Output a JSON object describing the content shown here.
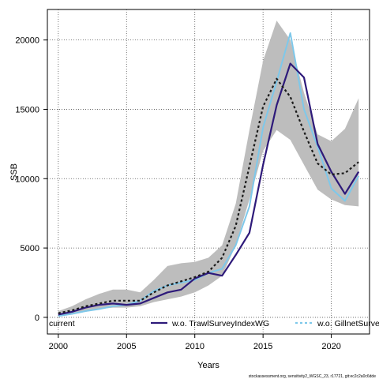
{
  "chart_data": {
    "type": "line",
    "xlabel": "Years",
    "ylabel": "SSB",
    "xlim": [
      1999.2,
      2022.8
    ],
    "ylim": [
      -1200,
      22200
    ],
    "x_ticks": [
      2000,
      2005,
      2010,
      2015,
      2020
    ],
    "y_ticks": [
      0,
      5000,
      10000,
      15000,
      20000
    ],
    "grid": true,
    "legend_position": "bottom",
    "x": [
      2000,
      2001,
      2002,
      2003,
      2004,
      2005,
      2006,
      2007,
      2008,
      2009,
      2010,
      2011,
      2012,
      2013,
      2014,
      2015,
      2016,
      2017,
      2018,
      2019,
      2020,
      2021,
      2022
    ],
    "band": {
      "lower": [
        100,
        200,
        400,
        600,
        700,
        700,
        800,
        1100,
        1300,
        1500,
        1800,
        2300,
        3000,
        5200,
        8500,
        12000,
        13500,
        12800,
        11000,
        9200,
        8500,
        8100,
        8000
      ],
      "upper": [
        450,
        800,
        1300,
        1700,
        2000,
        2000,
        1800,
        2700,
        3700,
        3900,
        4000,
        4300,
        5200,
        8200,
        13500,
        18500,
        21400,
        20000,
        16200,
        13200,
        12700,
        13600,
        15800
      ]
    },
    "series": [
      {
        "name": "current",
        "style": "dashed",
        "color": "#1a1a1a",
        "values": [
          300,
          500,
          800,
          1000,
          1200,
          1200,
          1200,
          1800,
          2300,
          2600,
          2900,
          3300,
          4300,
          6600,
          10900,
          15200,
          17200,
          15900,
          13400,
          11100,
          10300,
          10400,
          11200
        ]
      },
      {
        "name": "w.o. TrawlSurveyIndexWG",
        "style": "solid",
        "color": "#2e1a7a",
        "values": [
          200,
          400,
          700,
          900,
          1000,
          900,
          1000,
          1400,
          1800,
          2000,
          2800,
          3200,
          3000,
          4500,
          6100,
          11000,
          15300,
          18300,
          17300,
          12500,
          10500,
          8900,
          10500
        ]
      },
      {
        "name": "w.o. GillnetSurveyIndex",
        "style": "solid",
        "color": "#7ec8ea",
        "values": [
          100,
          250,
          450,
          600,
          800,
          900,
          1200,
          1900,
          2300,
          2500,
          2700,
          3200,
          3500,
          5200,
          8000,
          13700,
          17000,
          20500,
          15000,
          12300,
          9300,
          8400,
          10200
        ]
      }
    ]
  },
  "footer_text": "stockassessment.org, sensitivity2_WGSC_23, r17721, git:ec2c2a0c6dde"
}
